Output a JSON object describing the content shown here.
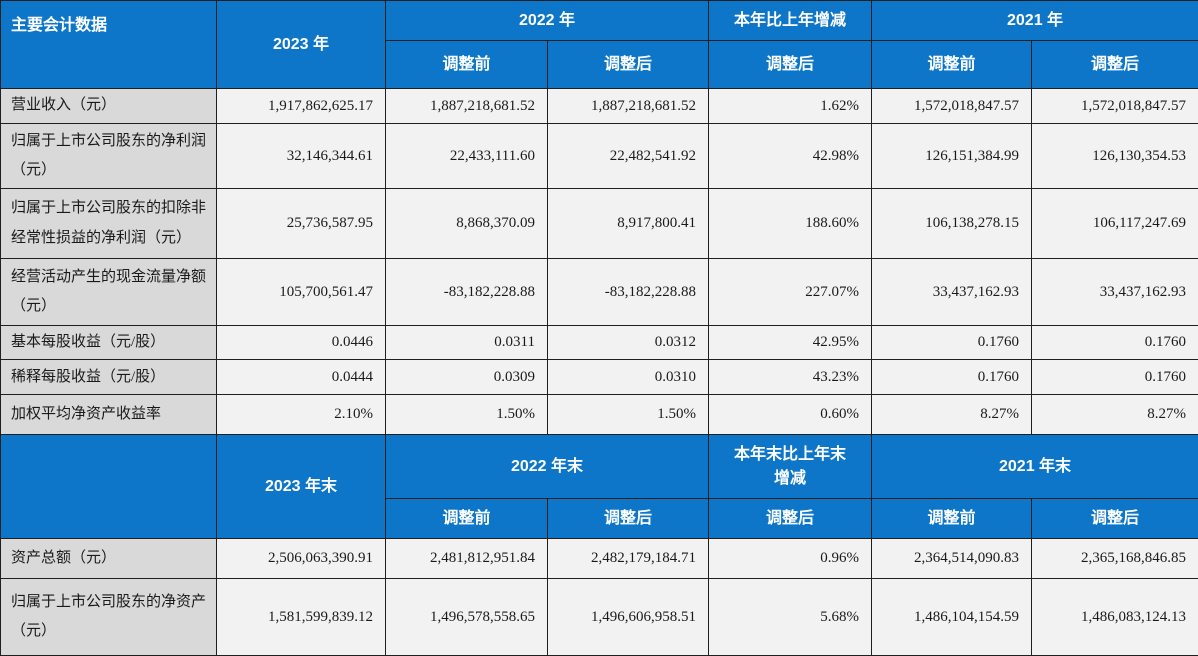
{
  "colors": {
    "header_bg": "#0d76c8",
    "label_bg": "#d9d9d9",
    "cell_bg": "#f2f2f2",
    "border": "#1f1f1f",
    "text": "#1a1a1a",
    "header_text": "#ffffff"
  },
  "s1": {
    "title": "主要会计数据",
    "h2023": "2023 年",
    "h2022": "2022 年",
    "hchange": "本年比上年增减",
    "h2021": "2021 年",
    "pre": "调整前",
    "post": "调整后",
    "rows": [
      {
        "label": "营业收入（元）",
        "v": [
          "1,917,862,625.17",
          "1,887,218,681.52",
          "1,887,218,681.52",
          "1.62%",
          "1,572,018,847.57",
          "1,572,018,847.57"
        ]
      },
      {
        "label": "归属于上市公司股东的净利润（元）",
        "v": [
          "32,146,344.61",
          "22,433,111.60",
          "22,482,541.92",
          "42.98%",
          "126,151,384.99",
          "126,130,354.53"
        ]
      },
      {
        "label": "归属于上市公司股东的扣除非经常性损益的净利润（元）",
        "v": [
          "25,736,587.95",
          "8,868,370.09",
          "8,917,800.41",
          "188.60%",
          "106,138,278.15",
          "106,117,247.69"
        ]
      },
      {
        "label": "经营活动产生的现金流量净额（元）",
        "v": [
          "105,700,561.47",
          "-83,182,228.88",
          "-83,182,228.88",
          "227.07%",
          "33,437,162.93",
          "33,437,162.93"
        ]
      },
      {
        "label": "基本每股收益（元/股）",
        "v": [
          "0.0446",
          "0.0311",
          "0.0312",
          "42.95%",
          "0.1760",
          "0.1760"
        ]
      },
      {
        "label": "稀释每股收益（元/股）",
        "v": [
          "0.0444",
          "0.0309",
          "0.0310",
          "43.23%",
          "0.1760",
          "0.1760"
        ]
      },
      {
        "label": "加权平均净资产收益率",
        "v": [
          "2.10%",
          "1.50%",
          "1.50%",
          "0.60%",
          "8.27%",
          "8.27%"
        ]
      }
    ]
  },
  "s2": {
    "title": "",
    "h2023": "2023 年末",
    "h2022": "2022 年末",
    "hchange": "本年末比上年末增减",
    "h2021": "2021 年末",
    "pre": "调整前",
    "post": "调整后",
    "rows": [
      {
        "label": "资产总额（元）",
        "v": [
          "2,506,063,390.91",
          "2,481,812,951.84",
          "2,482,179,184.71",
          "0.96%",
          "2,364,514,090.83",
          "2,365,168,846.85"
        ]
      },
      {
        "label": "归属于上市公司股东的净资产（元）",
        "v": [
          "1,581,599,839.12",
          "1,496,578,558.65",
          "1,496,606,958.51",
          "5.68%",
          "1,486,104,154.59",
          "1,486,083,124.13"
        ]
      }
    ]
  }
}
